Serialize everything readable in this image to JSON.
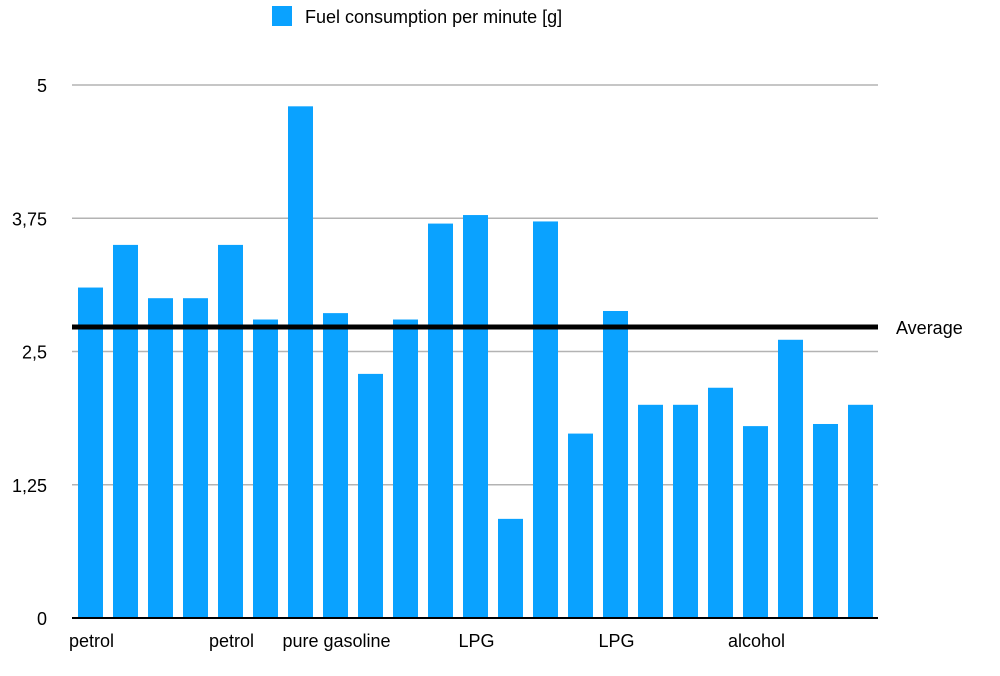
{
  "chart_data": {
    "type": "bar",
    "title": "",
    "xlabel": "",
    "ylabel": "",
    "ylim": [
      0,
      5
    ],
    "y_ticks": [
      0,
      1.25,
      2.5,
      3.75,
      5
    ],
    "y_tick_labels": [
      "0",
      "1,25",
      "2,5",
      "3,75",
      "5"
    ],
    "grid": true,
    "legend_position": "top-center",
    "categories": [
      "petrol",
      "",
      "",
      "",
      "petrol",
      "",
      "",
      "pure gasoline",
      "",
      "",
      "",
      "LPG",
      "",
      "",
      "",
      "LPG",
      "",
      "",
      "",
      "alcohol",
      "",
      "",
      ""
    ],
    "series": [
      {
        "name": "Fuel consumption per minute [g]",
        "color": "#0aa2ff",
        "values": [
          3.1,
          3.5,
          3.0,
          3.0,
          3.5,
          2.8,
          4.8,
          2.86,
          2.29,
          2.8,
          3.7,
          3.78,
          0.93,
          3.72,
          1.73,
          2.88,
          2.0,
          2.0,
          2.16,
          1.8,
          2.61,
          1.82,
          2.0
        ]
      }
    ],
    "reference_line": {
      "label": "Average",
      "value": 2.73,
      "color": "#000000"
    }
  }
}
